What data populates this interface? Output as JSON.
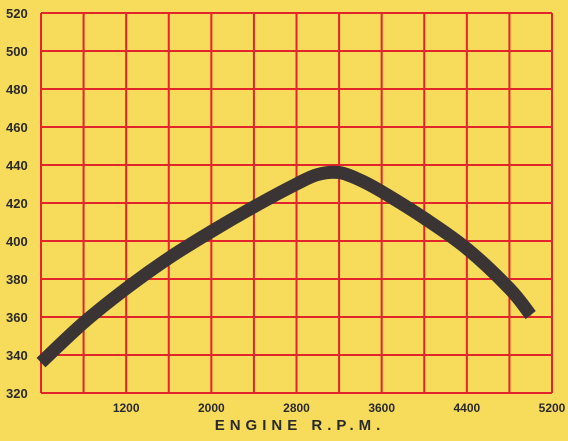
{
  "chart_data": {
    "type": "line",
    "title": "",
    "xlabel": "ENGINE R.P.M.",
    "ylabel": "",
    "xlim": [
      400,
      5200
    ],
    "ylim": [
      320,
      520
    ],
    "xticks": [
      1200,
      2000,
      2800,
      3600,
      4400,
      5200
    ],
    "yticks": [
      320,
      340,
      360,
      380,
      400,
      420,
      440,
      460,
      480,
      500,
      520
    ],
    "x_grid_step": 400,
    "y_grid_step": 20,
    "grid": true,
    "series": [
      {
        "x": [
          400,
          800,
          1200,
          1600,
          2000,
          2400,
          2800,
          3000,
          3200,
          3400,
          3600,
          4000,
          4400,
          4800,
          5000
        ],
        "y": [
          336,
          357,
          375,
          391,
          405,
          418,
          430,
          435,
          436,
          432,
          426,
          412,
          396,
          375,
          361
        ]
      }
    ],
    "colors": {
      "background": "#f7dc5c",
      "grid": "#e3242b",
      "line": "#3a3434",
      "text": "#2a2a2a"
    }
  }
}
